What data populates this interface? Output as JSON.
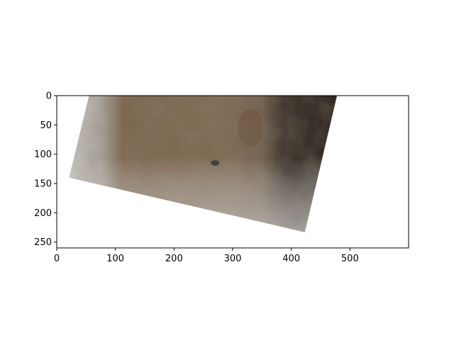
{
  "figure": {
    "background": "#ffffff",
    "axes_color": "#000000"
  },
  "image_plot": {
    "x_axis": {
      "range": [
        0,
        600
      ],
      "ticks": [
        0,
        100,
        200,
        300,
        400,
        500
      ],
      "labels": [
        "0",
        "100",
        "200",
        "300",
        "400",
        "500"
      ]
    },
    "y_axis": {
      "range": [
        0,
        260
      ],
      "inverted": true,
      "ticks": [
        0,
        50,
        100,
        150,
        200,
        250
      ],
      "labels": [
        "0",
        "50",
        "100",
        "150",
        "200",
        "250"
      ]
    },
    "raster": {
      "subject": "rotated satellite image tile of arid desert terrain",
      "corners_data_units": [
        {
          "x": 55,
          "y": 0
        },
        {
          "x": 478,
          "y": 0
        },
        {
          "x": 423,
          "y": 233
        },
        {
          "x": 21,
          "y": 140
        }
      ],
      "colors": {
        "desert": "#8a7158",
        "desert_light": "#9c8468",
        "dark_east": "#3e342c",
        "cloud_west": "#d9d9d9",
        "lake": "#2f3b3a"
      }
    }
  }
}
